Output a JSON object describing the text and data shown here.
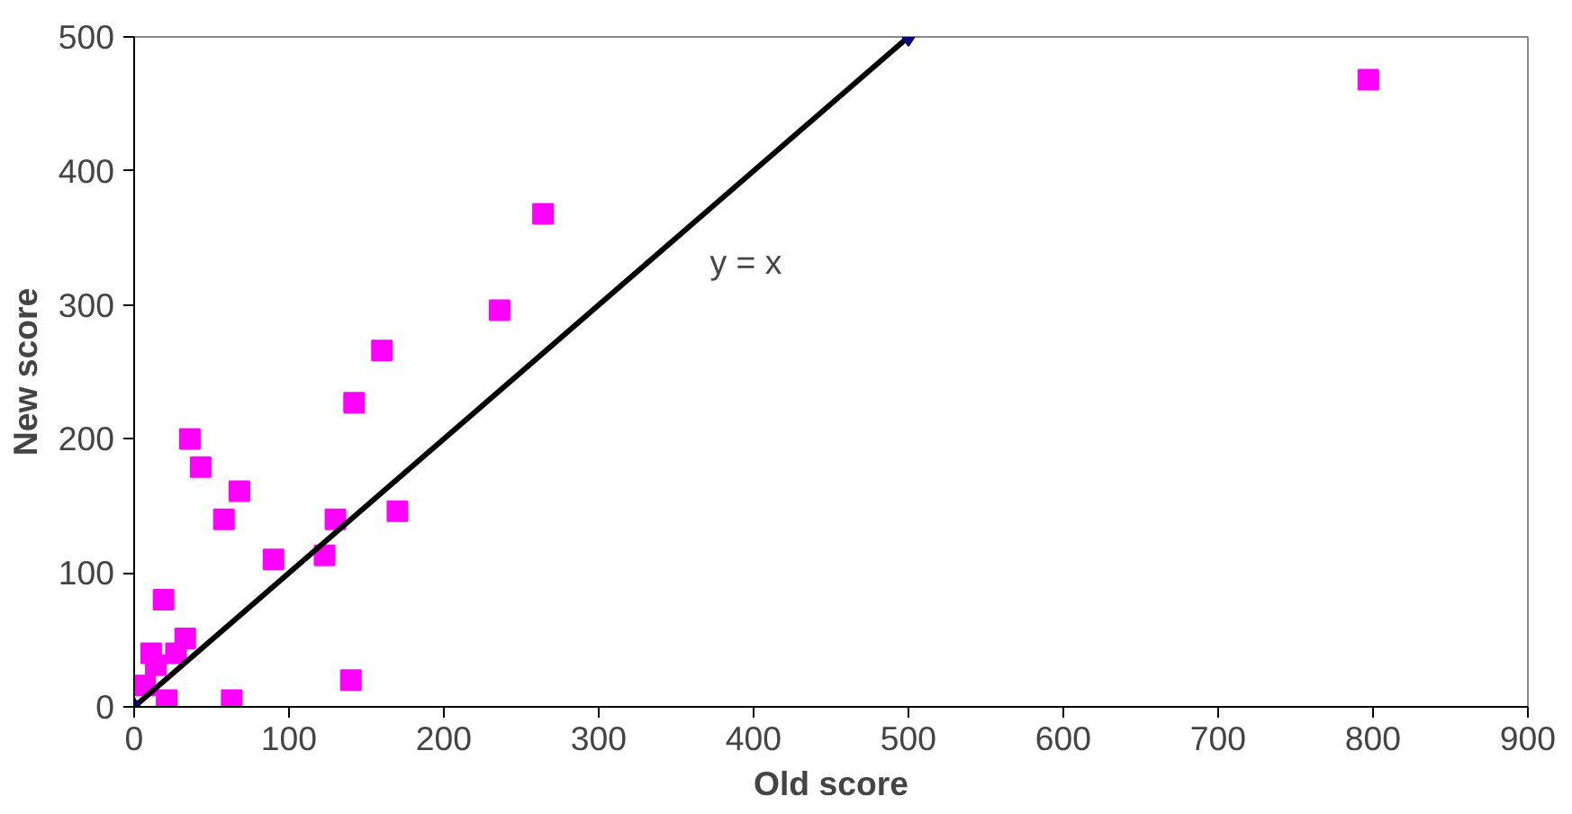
{
  "chart_data": {
    "type": "scatter",
    "xlabel": "Old score",
    "ylabel": "New score",
    "xlim": [
      0,
      900
    ],
    "ylim": [
      0,
      500
    ],
    "xticks": [
      0,
      100,
      200,
      300,
      400,
      500,
      600,
      700,
      800,
      900
    ],
    "yticks": [
      0,
      100,
      200,
      300,
      400,
      500
    ],
    "grid": false,
    "marker": "square",
    "series": [
      {
        "color": "#ff00ff",
        "x": [
          36,
          43,
          68,
          58,
          90,
          123,
          130,
          170,
          142,
          160,
          236,
          264,
          797,
          19,
          140,
          63,
          21,
          33,
          11,
          14,
          7,
          27
        ],
        "values": [
          200,
          179,
          161,
          140,
          110,
          113,
          140,
          146,
          227,
          266,
          296,
          368,
          468,
          80,
          20,
          5,
          5,
          51,
          40,
          31,
          16,
          40
        ]
      },
      {
        "type": "line",
        "color": "#000000",
        "marker": "diamond",
        "x": [
          0,
          500
        ],
        "values": [
          0,
          500
        ]
      }
    ],
    "annotations": [
      "y = x"
    ]
  }
}
